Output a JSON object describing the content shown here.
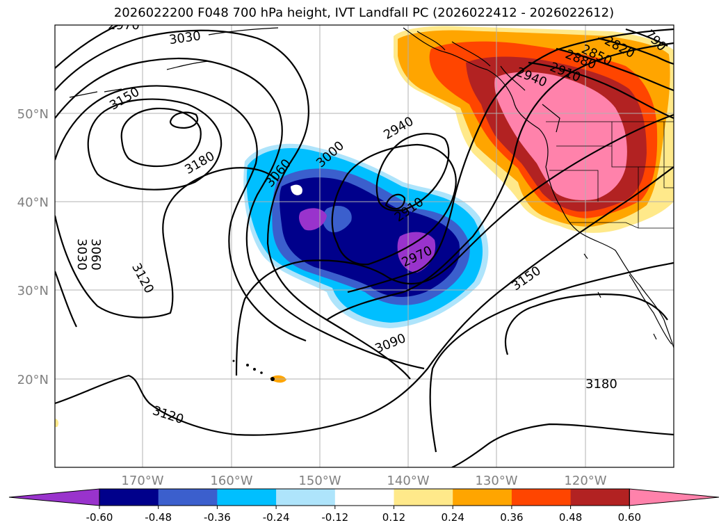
{
  "title": "2026022200 F048 700 hPa height, IVT Landfall PC (2026022412 - 2026022612)",
  "lat_labels": [
    "50°N",
    "40°N",
    "30°N",
    "20°N"
  ],
  "lon_labels": [
    "170°W",
    "160°W",
    "150°W",
    "140°W",
    "130°W",
    "120°W"
  ],
  "colorbar": {
    "ticks": [
      "-0.60",
      "-0.48",
      "-0.36",
      "-0.24",
      "-0.12",
      "0.12",
      "0.24",
      "0.36",
      "0.48",
      "0.60"
    ],
    "colors": [
      "#9933cc",
      "#00008b",
      "#3b5fcd",
      "#00bfff",
      "#aee4fb",
      "#ffffff",
      "#ffe98a",
      "#ffa500",
      "#ff4500",
      "#b22222",
      "#ff82ab"
    ]
  },
  "contour_labels": [
    {
      "text": "2970"
    },
    {
      "text": "3030"
    },
    {
      "text": "3150"
    },
    {
      "text": "3180"
    },
    {
      "text": "3060"
    },
    {
      "text": "3000"
    },
    {
      "text": "2940"
    },
    {
      "text": "2910"
    },
    {
      "text": "2970"
    },
    {
      "text": "3060"
    },
    {
      "text": "3030"
    },
    {
      "text": "3120"
    },
    {
      "text": "3090"
    },
    {
      "text": "3150"
    },
    {
      "text": "3180"
    },
    {
      "text": "3120"
    },
    {
      "text": "2940"
    },
    {
      "text": "2910"
    },
    {
      "text": "2880"
    },
    {
      "text": "2850"
    },
    {
      "text": "2820"
    },
    {
      "text": "790"
    }
  ]
}
